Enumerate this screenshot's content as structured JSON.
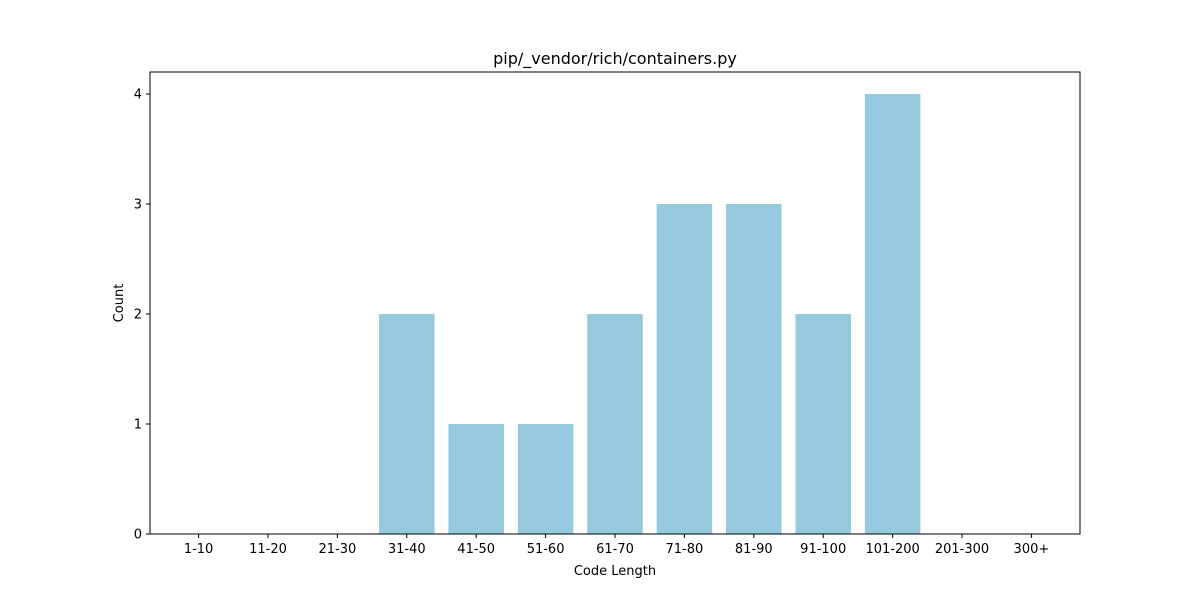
{
  "chart_data": {
    "type": "bar",
    "title": "pip/_vendor/rich/containers.py",
    "xlabel": "Code Length",
    "ylabel": "Count",
    "categories": [
      "1-10",
      "11-20",
      "21-30",
      "31-40",
      "41-50",
      "51-60",
      "61-70",
      "71-80",
      "81-90",
      "91-100",
      "101-200",
      "201-300",
      "300+"
    ],
    "values": [
      0,
      0,
      0,
      2,
      1,
      1,
      2,
      3,
      3,
      2,
      4,
      0,
      0
    ],
    "ylim": [
      0,
      4.2
    ],
    "yticks": [
      0,
      1,
      2,
      3,
      4
    ],
    "grid": false,
    "legend": "none",
    "colors": {
      "bar": "#96c9dd",
      "axis": "#000000",
      "background": "#ffffff"
    }
  }
}
